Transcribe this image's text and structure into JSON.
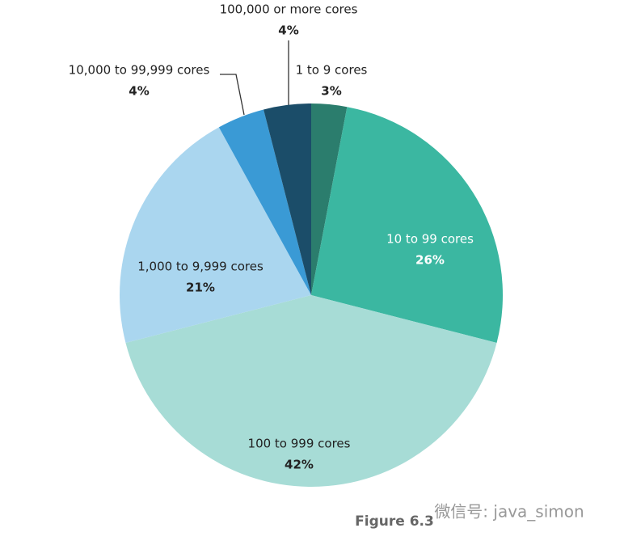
{
  "chart_data": {
    "type": "pie",
    "categories": [
      "1 to 9 cores",
      "10 to 99 cores",
      "100 to 999 cores",
      "1,000 to 9,999 cores",
      "10,000 to 99,999 cores",
      "100,000 or more cores"
    ],
    "values": [
      3,
      26,
      42,
      21,
      4,
      4
    ],
    "value_labels": [
      "3%",
      "26%",
      "42%",
      "21%",
      "4%",
      "4%"
    ],
    "colors": [
      "#2b7d6d",
      "#3bb7a1",
      "#a7dcd6",
      "#aad6ef",
      "#3a9ad5",
      "#1b4d69"
    ],
    "caption": "Figure 6.3",
    "watermark": "微信号: java_simon"
  }
}
